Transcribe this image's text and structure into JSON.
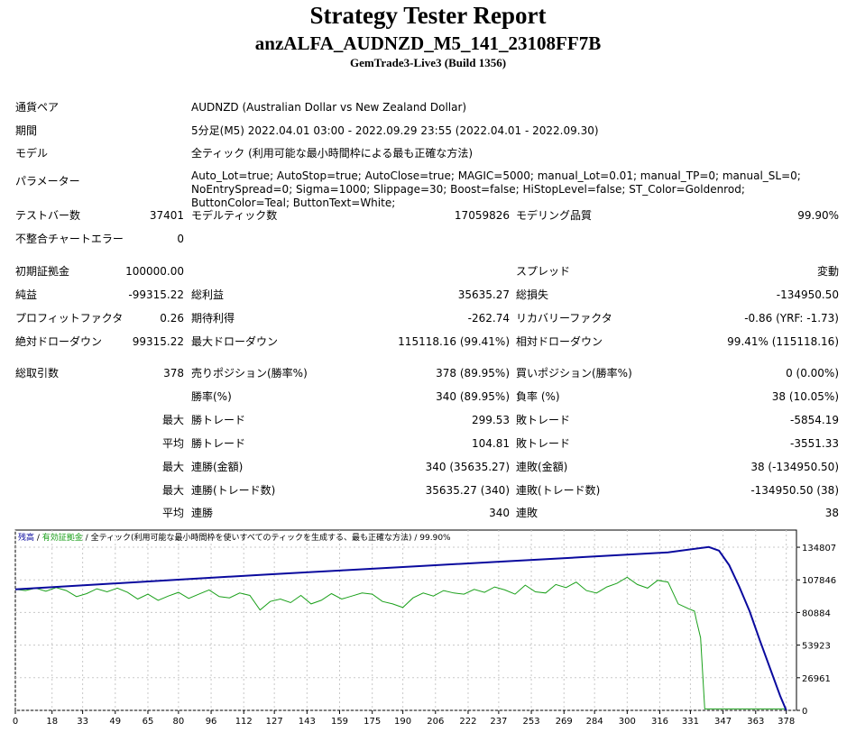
{
  "header": {
    "title": "Strategy Tester Report",
    "subtitle": "anzALFA_AUDNZD_M5_141_23108FF7B",
    "server": "GemTrade3-Live3 (Build 1356)"
  },
  "settings": {
    "symbol_label": "通貨ペア",
    "symbol_value": "AUDNZD (Australian Dollar vs New Zealand Dollar)",
    "period_label": "期間",
    "period_value": "5分足(M5) 2022.04.01 03:00 - 2022.09.29 23:55 (2022.04.01 - 2022.09.30)",
    "model_label": "モデル",
    "model_value": "全ティック (利用可能な最小時間枠による最も正確な方法)",
    "params_label": "パラメーター",
    "params_value": "Auto_Lot=true; AutoStop=true; AutoClose=true; MAGIC=5000; manual_Lot=0.01; manual_TP=0; manual_SL=0; NoEntrySpread=0; Sigma=1000; Slippage=30; Boost=false; HiStopLevel=false; ST_Color=Goldenrod; ButtonColor=Teal; ButtonText=White;"
  },
  "stats": {
    "bars_label": "テストバー数",
    "bars_value": "37401",
    "ticks_label": "モデルティック数",
    "ticks_value": "17059826",
    "quality_label": "モデリング品質",
    "quality_value": "99.90%",
    "mismatch_label": "不整合チャートエラー",
    "mismatch_value": "0",
    "deposit_label": "初期証拠金",
    "deposit_value": "100000.00",
    "spread_label": "スプレッド",
    "spread_value": "変動",
    "net_label": "純益",
    "net_value": "-99315.22",
    "gross_profit_label": "総利益",
    "gross_profit_value": "35635.27",
    "gross_loss_label": "総損失",
    "gross_loss_value": "-134950.50",
    "pf_label": "プロフィットファクタ",
    "pf_value": "0.26",
    "payoff_label": "期待利得",
    "payoff_value": "-262.74",
    "recovery_label": "リカバリーファクタ",
    "recovery_value": "-0.86 (YRF: -1.73)",
    "abs_dd_label": "絶対ドローダウン",
    "abs_dd_value": "99315.22",
    "max_dd_label": "最大ドローダウン",
    "max_dd_value": "115118.16 (99.41%)",
    "rel_dd_label": "相対ドローダウン",
    "rel_dd_value": "99.41% (115118.16)",
    "total_trades_label": "総取引数",
    "total_trades_value": "378",
    "short_label": "売りポジション(勝率%)",
    "short_value": "378 (89.95%)",
    "long_label": "買いポジション(勝率%)",
    "long_value": "0 (0.00%)",
    "win_rate_label": "勝率(%)",
    "win_rate_value": "340 (89.95%)",
    "loss_rate_label": "負率 (%)",
    "loss_rate_value": "38 (10.05%)",
    "max_prefix": "最大",
    "avg_prefix": "平均",
    "largest_win_label": "勝トレード",
    "largest_win_value": "299.53",
    "largest_loss_label": "敗トレード",
    "largest_loss_value": "-5854.19",
    "avg_win_label": "勝トレード",
    "avg_win_value": "104.81",
    "avg_loss_label": "敗トレード",
    "avg_loss_value": "-3551.33",
    "max_consec_wins_label": "連勝(金額)",
    "max_consec_wins_value": "340 (35635.27)",
    "max_consec_losses_label": "連敗(金額)",
    "max_consec_losses_value": "38 (-134950.50)",
    "max_consec_profit_label": "連勝(トレード数)",
    "max_consec_profit_value": "35635.27 (340)",
    "max_consec_loss_label": "連敗(トレード数)",
    "max_consec_loss_value": "-134950.50 (38)",
    "avg_consec_wins_label": "連勝",
    "avg_consec_wins_value": "340",
    "avg_consec_losses_label": "連敗",
    "avg_consec_losses_value": "38"
  },
  "chart_legend": {
    "balance": "残高",
    "sep1": " / ",
    "equity": "有効証拠金",
    "sep2": " / ",
    "model": "全ティック(利用可能な最小時間枠を使いすべてのティックを生成する、最も正確な方法)",
    "sep3": " / ",
    "quality": "99.90%"
  },
  "colors": {
    "balance": "#0a0a9e",
    "equity": "#1aa01a",
    "grid": "#c8c8c8"
  },
  "chart_data": {
    "type": "line",
    "x_ticks": [
      0,
      18,
      33,
      49,
      65,
      80,
      96,
      112,
      127,
      143,
      159,
      175,
      190,
      206,
      222,
      237,
      253,
      269,
      284,
      300,
      316,
      331,
      347,
      363,
      378
    ],
    "y_ticks": [
      0,
      26961,
      53923,
      80884,
      107846,
      134807
    ],
    "x_range": [
      0,
      383
    ],
    "y_range": [
      0,
      149000
    ],
    "series": [
      {
        "name": "残高",
        "x": [
          0,
          40,
          80,
          120,
          160,
          200,
          240,
          280,
          320,
          340,
          345,
          350,
          355,
          360,
          365,
          370,
          375,
          378
        ],
        "y": [
          100000,
          104000,
          108000,
          112000,
          115700,
          119400,
          123100,
          126800,
          130600,
          135000,
          132000,
          120000,
          102000,
          82000,
          58000,
          35000,
          12000,
          0
        ]
      },
      {
        "name": "有効証拠金",
        "x": [
          0,
          5,
          10,
          15,
          20,
          25,
          30,
          35,
          40,
          45,
          50,
          55,
          60,
          65,
          70,
          75,
          80,
          85,
          90,
          95,
          100,
          105,
          110,
          115,
          120,
          125,
          130,
          135,
          140,
          145,
          150,
          155,
          160,
          165,
          170,
          175,
          180,
          185,
          190,
          195,
          200,
          205,
          210,
          215,
          220,
          225,
          230,
          235,
          240,
          245,
          250,
          255,
          260,
          265,
          270,
          275,
          280,
          285,
          290,
          295,
          300,
          305,
          310,
          315,
          320,
          325,
          330,
          333,
          334,
          336,
          338,
          350,
          360,
          370,
          378
        ],
        "y": [
          100000,
          99000,
          101000,
          98500,
          101500,
          99000,
          94000,
          96500,
          100500,
          98000,
          101000,
          97500,
          92000,
          96000,
          91000,
          94500,
          97500,
          92500,
          96000,
          99500,
          94000,
          93000,
          97000,
          95000,
          83000,
          90000,
          92000,
          89000,
          95000,
          88000,
          91000,
          96500,
          92000,
          94500,
          97000,
          96000,
          90000,
          88000,
          85000,
          93000,
          97000,
          94500,
          99000,
          97000,
          96000,
          100000,
          97500,
          102000,
          99500,
          96000,
          103500,
          98000,
          97000,
          104000,
          101500,
          106000,
          99000,
          97000,
          102000,
          105000,
          110000,
          104000,
          101000,
          107500,
          106000,
          88000,
          84000,
          82000,
          74000,
          60000,
          1200,
          1200,
          1200,
          1200,
          1200
        ]
      }
    ]
  }
}
